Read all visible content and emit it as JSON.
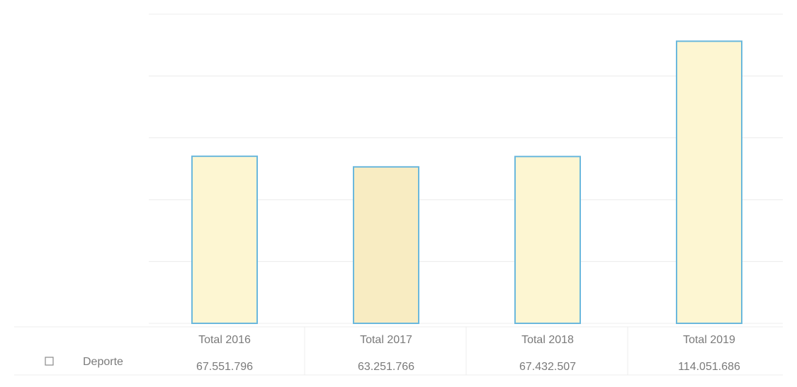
{
  "chart_data": {
    "type": "bar",
    "categories": [
      "Total  2016",
      "Total 2017",
      "Total 2018",
      "Total 2019"
    ],
    "series": [
      {
        "name": "Deporte",
        "values": [
          67551796,
          63251766,
          67432507,
          114051686
        ],
        "value_labels": [
          "67.551.796",
          "63.251.766",
          "67.432.507",
          "114.051.686"
        ]
      }
    ],
    "ylim": [
      0,
      125000000
    ],
    "grid": true,
    "legend": "data-table-left",
    "colors": {
      "bar_fill": "#fdf6d2",
      "bar_fill_alt": "#f8ecc2",
      "bar_stroke": "#6bb8dc",
      "grid": "#ececec",
      "text": "#7a7a7a"
    }
  }
}
